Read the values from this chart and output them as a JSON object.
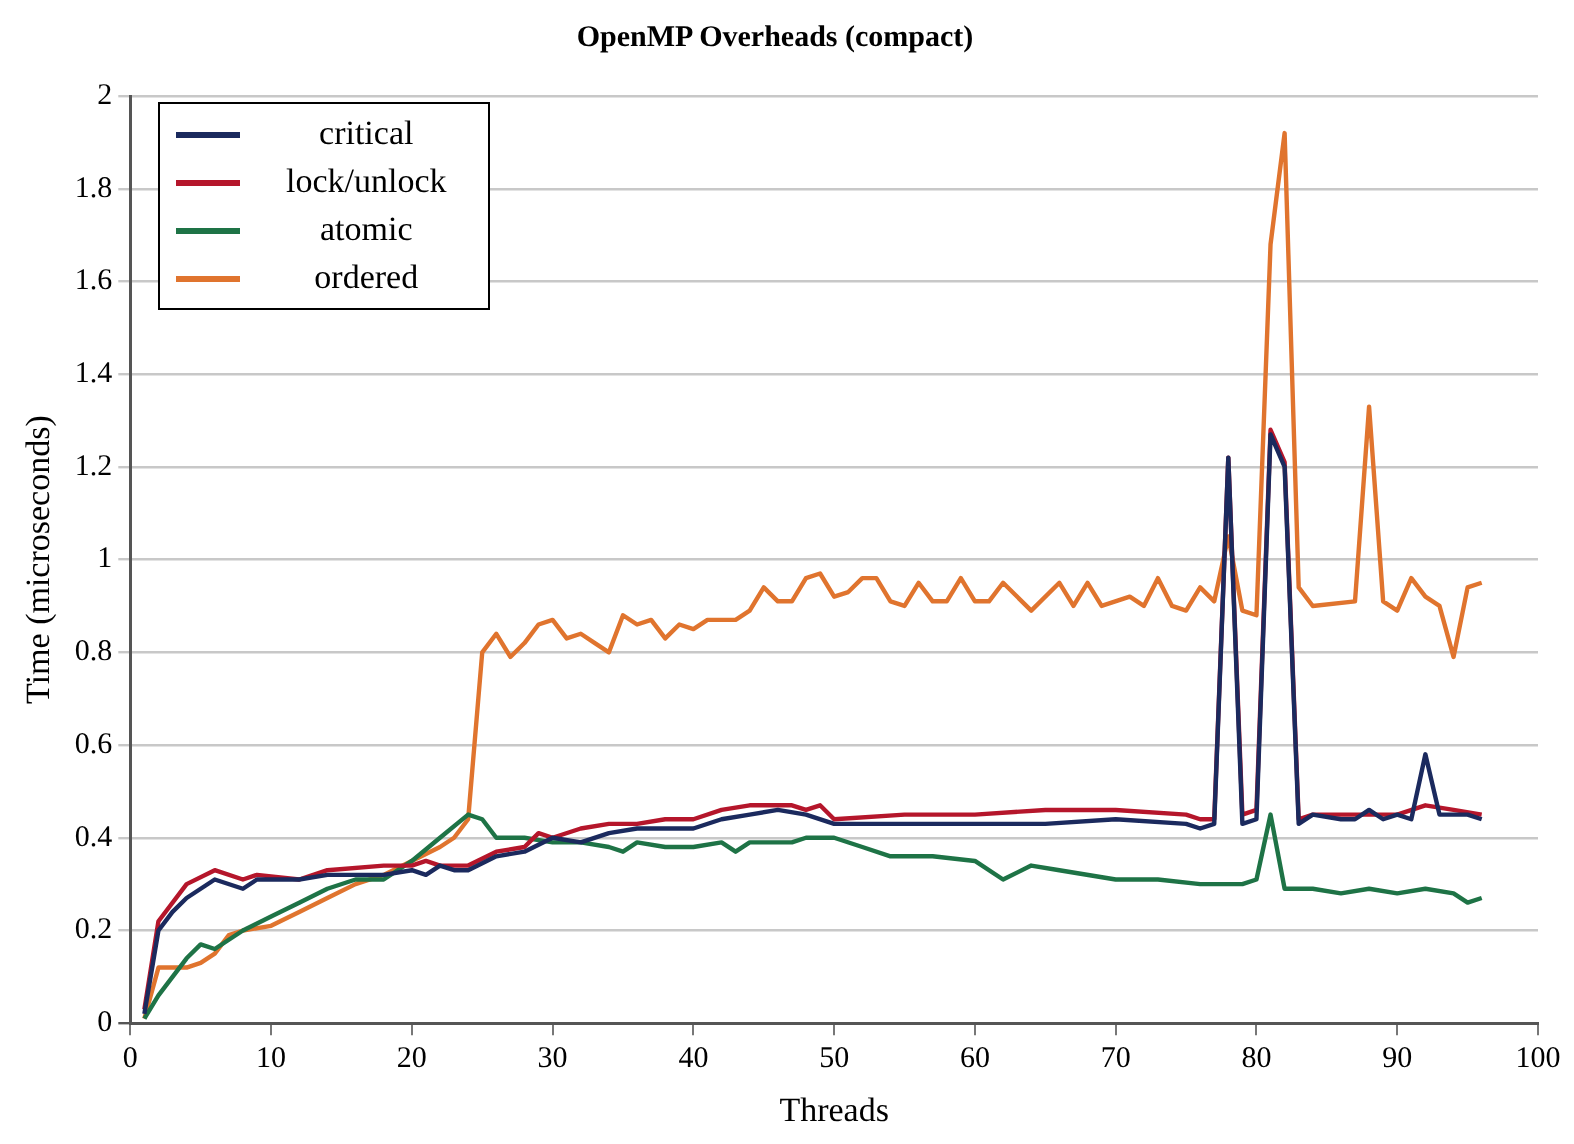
{
  "chart_data": {
    "type": "line",
    "title": "OpenMP Overheads (compact)",
    "xlabel": "Threads",
    "ylabel": "Time (microseconds)",
    "xlim": [
      0,
      100
    ],
    "xticks": [
      0,
      10,
      20,
      30,
      40,
      50,
      60,
      70,
      80,
      90,
      100
    ],
    "ylim": [
      0,
      2
    ],
    "yticks": [
      0,
      0.2,
      0.4,
      0.6,
      0.8,
      1,
      1.2,
      1.4,
      1.6,
      1.8,
      2
    ],
    "grid": "y",
    "legend": "top left",
    "marker": "none",
    "line_style": "solid",
    "series": [
      {
        "name": "critical",
        "color": "#1b2a5e",
        "x": [
          1,
          2,
          3,
          4,
          6,
          8,
          9,
          12,
          14,
          18,
          20,
          21,
          22,
          23,
          24,
          26,
          28,
          30,
          32,
          34,
          36,
          38,
          40,
          42,
          44,
          46,
          48,
          50,
          55,
          60,
          65,
          70,
          75,
          76,
          77,
          78,
          79,
          80,
          81,
          82,
          83,
          84,
          86,
          87,
          88,
          89,
          90,
          91,
          92,
          93,
          94,
          95,
          96
        ],
        "values": [
          0.02,
          0.2,
          0.24,
          0.27,
          0.31,
          0.29,
          0.31,
          0.31,
          0.32,
          0.32,
          0.33,
          0.32,
          0.34,
          0.33,
          0.33,
          0.36,
          0.37,
          0.4,
          0.39,
          0.41,
          0.42,
          0.42,
          0.42,
          0.44,
          0.45,
          0.46,
          0.45,
          0.43,
          0.43,
          0.43,
          0.43,
          0.44,
          0.43,
          0.42,
          0.43,
          1.22,
          0.43,
          0.44,
          1.27,
          1.2,
          0.43,
          0.45,
          0.44,
          0.44,
          0.46,
          0.44,
          0.45,
          0.44,
          0.58,
          0.45,
          0.45,
          0.45,
          0.44
        ]
      },
      {
        "name": "lock/unlock",
        "color": "#b5162b",
        "x": [
          1,
          2,
          4,
          6,
          8,
          9,
          12,
          14,
          18,
          20,
          21,
          22,
          24,
          26,
          28,
          29,
          30,
          32,
          34,
          36,
          38,
          40,
          42,
          44,
          46,
          47,
          48,
          49,
          50,
          55,
          60,
          65,
          70,
          75,
          76,
          77,
          78,
          79,
          80,
          81,
          82,
          83,
          84,
          86,
          88,
          90,
          92,
          94,
          96
        ],
        "values": [
          0.03,
          0.22,
          0.3,
          0.33,
          0.31,
          0.32,
          0.31,
          0.33,
          0.34,
          0.34,
          0.35,
          0.34,
          0.34,
          0.37,
          0.38,
          0.41,
          0.4,
          0.42,
          0.43,
          0.43,
          0.44,
          0.44,
          0.46,
          0.47,
          0.47,
          0.47,
          0.46,
          0.47,
          0.44,
          0.45,
          0.45,
          0.46,
          0.46,
          0.45,
          0.44,
          0.44,
          1.22,
          0.45,
          0.46,
          1.28,
          1.21,
          0.44,
          0.45,
          0.45,
          0.45,
          0.45,
          0.47,
          0.46,
          0.45
        ]
      },
      {
        "name": "atomic",
        "color": "#1e7346",
        "x": [
          1,
          2,
          4,
          5,
          6,
          8,
          10,
          12,
          14,
          16,
          18,
          20,
          22,
          24,
          25,
          26,
          28,
          30,
          32,
          34,
          35,
          36,
          38,
          40,
          42,
          43,
          44,
          47,
          48,
          50,
          52,
          54,
          57,
          60,
          62,
          64,
          66,
          70,
          73,
          76,
          78,
          79,
          80,
          81,
          82,
          84,
          86,
          88,
          90,
          92,
          94,
          95,
          96
        ],
        "values": [
          0.01,
          0.06,
          0.14,
          0.17,
          0.16,
          0.2,
          0.23,
          0.26,
          0.29,
          0.31,
          0.31,
          0.35,
          0.4,
          0.45,
          0.44,
          0.4,
          0.4,
          0.39,
          0.39,
          0.38,
          0.37,
          0.39,
          0.38,
          0.38,
          0.39,
          0.37,
          0.39,
          0.39,
          0.4,
          0.4,
          0.38,
          0.36,
          0.36,
          0.35,
          0.31,
          0.34,
          0.33,
          0.31,
          0.31,
          0.3,
          0.3,
          0.3,
          0.31,
          0.45,
          0.29,
          0.29,
          0.28,
          0.29,
          0.28,
          0.29,
          0.28,
          0.26,
          0.27
        ]
      },
      {
        "name": "ordered",
        "color": "#e0742e",
        "x": [
          1,
          2,
          3,
          4,
          5,
          6,
          7,
          8,
          10,
          12,
          14,
          16,
          18,
          20,
          22,
          23,
          24,
          25,
          26,
          27,
          28,
          29,
          30,
          31,
          32,
          33,
          34,
          35,
          36,
          37,
          38,
          39,
          40,
          41,
          42,
          43,
          44,
          45,
          46,
          47,
          48,
          49,
          50,
          51,
          52,
          53,
          54,
          55,
          56,
          57,
          58,
          59,
          60,
          61,
          62,
          64,
          66,
          67,
          68,
          69,
          71,
          72,
          73,
          74,
          75,
          76,
          77,
          78,
          79,
          80,
          81,
          82,
          83,
          84,
          87,
          88,
          89,
          90,
          91,
          92,
          93,
          94,
          95,
          96
        ],
        "values": [
          0.01,
          0.12,
          0.12,
          0.12,
          0.13,
          0.15,
          0.19,
          0.2,
          0.21,
          0.24,
          0.27,
          0.3,
          0.32,
          0.35,
          0.38,
          0.4,
          0.44,
          0.8,
          0.84,
          0.79,
          0.82,
          0.86,
          0.87,
          0.83,
          0.84,
          0.82,
          0.8,
          0.88,
          0.86,
          0.87,
          0.83,
          0.86,
          0.85,
          0.87,
          0.87,
          0.87,
          0.89,
          0.94,
          0.91,
          0.91,
          0.96,
          0.97,
          0.92,
          0.93,
          0.96,
          0.96,
          0.91,
          0.9,
          0.95,
          0.91,
          0.91,
          0.96,
          0.91,
          0.91,
          0.95,
          0.89,
          0.95,
          0.9,
          0.95,
          0.9,
          0.92,
          0.9,
          0.96,
          0.9,
          0.89,
          0.94,
          0.91,
          1.05,
          0.89,
          0.88,
          1.68,
          1.92,
          0.94,
          0.9,
          0.91,
          1.33,
          0.91,
          0.89,
          0.96,
          0.92,
          0.9,
          0.79,
          0.94,
          0.95
        ]
      }
    ]
  }
}
